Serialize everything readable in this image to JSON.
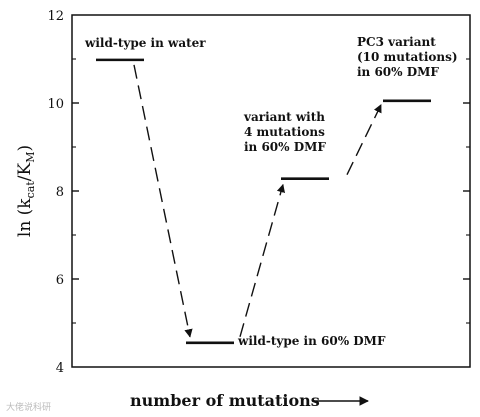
{
  "chart_data": {
    "type": "line",
    "title": "",
    "xlabel": "number of mutations",
    "ylabel": "ln (kcat/KM)",
    "ylabel_parts": {
      "prefix": "ln (k",
      "sub1": "cat",
      "mid": "/K",
      "sub2": "M",
      "suffix": ")"
    },
    "ylim": [
      4,
      12
    ],
    "yticks": [
      "4",
      "6",
      "8",
      "10",
      "12"
    ],
    "grid": false,
    "legend": "none",
    "states": [
      {
        "x": 0,
        "y": 10.98,
        "label_lines": [
          "wild-type in water"
        ]
      },
      {
        "x": 1,
        "y": 4.55,
        "label_lines": [
          "wild-type in 60% DMF"
        ]
      },
      {
        "x": 2,
        "y": 8.28,
        "label_lines": [
          "variant with",
          "4 mutations",
          "in 60% DMF"
        ]
      },
      {
        "x": 3,
        "y": 10.05,
        "label_lines": [
          "PC3 variant",
          "(10 mutations)",
          "in 60% DMF"
        ]
      }
    ],
    "transitions": [
      {
        "from": 0,
        "to": 1
      },
      {
        "from": 1,
        "to": 2
      },
      {
        "from": 2,
        "to": 3
      }
    ]
  },
  "watermark": "大佬说科研"
}
